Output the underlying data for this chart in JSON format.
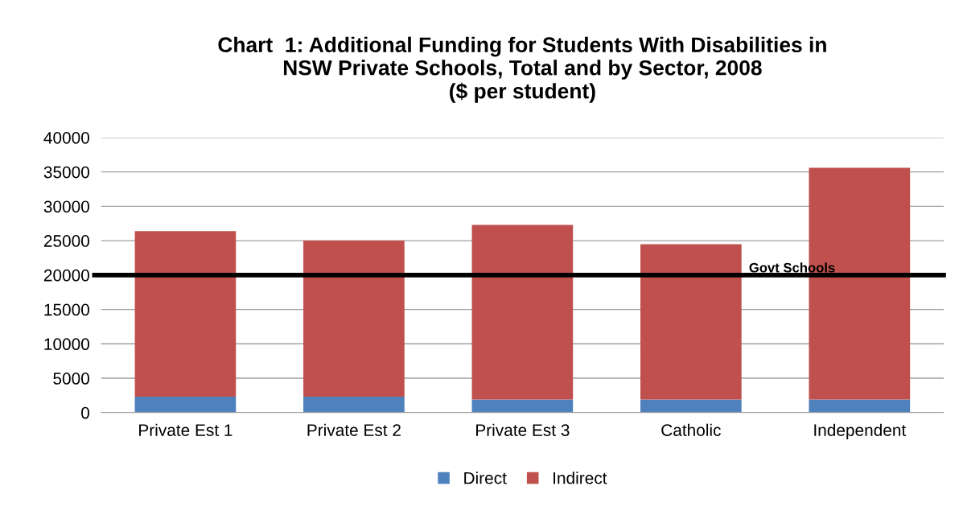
{
  "chart_data": {
    "type": "bar",
    "title": "Chart  1: Additional Funding for Students With Disabilities in\nNSW Private Schools, Total and by Sector, 2008\n($ per student)",
    "categories": [
      "Private Est 1",
      "Private Est 2",
      "Private Est 3",
      "Catholic",
      "Independent"
    ],
    "stacked": true,
    "series": [
      {
        "name": "Direct",
        "color": "#4f81bd",
        "values": [
          2300,
          2300,
          1900,
          1900,
          1900
        ]
      },
      {
        "name": "Indirect",
        "color": "#c0504d",
        "values": [
          24100,
          22700,
          25400,
          22600,
          33700
        ]
      }
    ],
    "ylim": [
      0,
      40000
    ],
    "yticks": [
      0,
      5000,
      10000,
      15000,
      20000,
      25000,
      30000,
      35000,
      40000
    ],
    "grid": "y",
    "legend": "bottom",
    "ref_lines": [
      {
        "axis": "y",
        "value": 20000,
        "label": "Govt Schools",
        "color": "#000000",
        "line_style": "solid"
      }
    ]
  }
}
